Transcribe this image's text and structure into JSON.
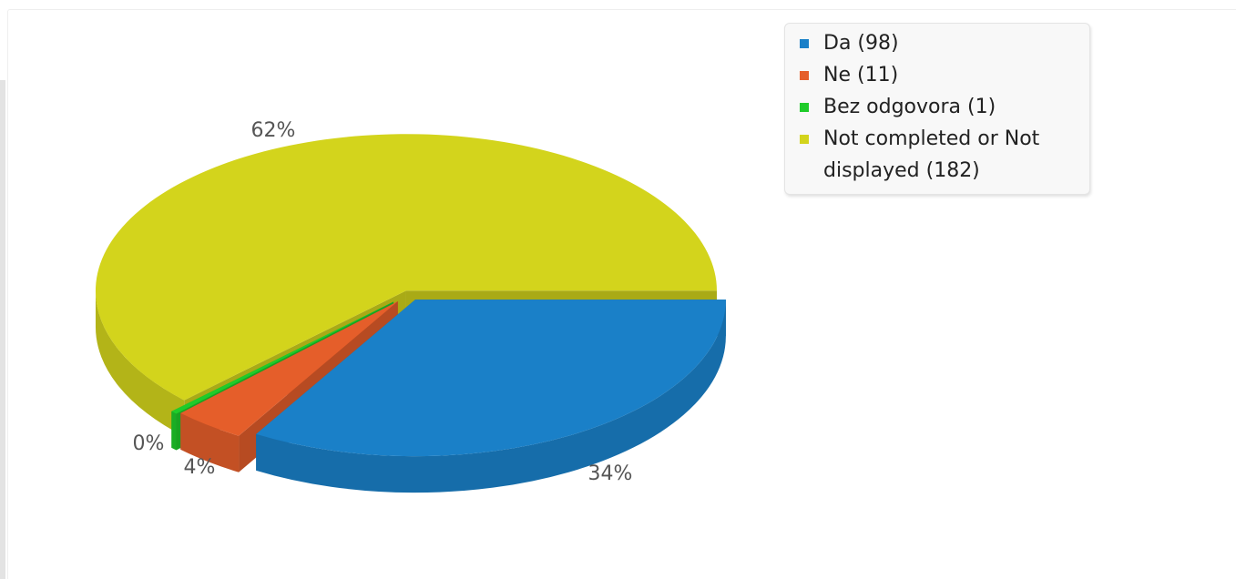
{
  "chart_data": {
    "type": "pie",
    "style": "3d-exploded",
    "legend_position": "top-right",
    "slices": [
      {
        "name": "Da",
        "value": 98,
        "percent_label": "34%",
        "legend_label": "Da (98)",
        "color": "#1a80c8"
      },
      {
        "name": "Ne",
        "value": 11,
        "percent_label": "4%",
        "legend_label": "Ne (11)",
        "color": "#e55e2a"
      },
      {
        "name": "Bez odgovora",
        "value": 1,
        "percent_label": "0%",
        "legend_label": "Bez odgovora (1)",
        "color": "#1fcc2a"
      },
      {
        "name": "Not completed or Not displayed",
        "value": 182,
        "percent_label": "62%",
        "legend_label": "Not completed or Not displayed (182)",
        "color": "#d3d41c"
      }
    ]
  }
}
